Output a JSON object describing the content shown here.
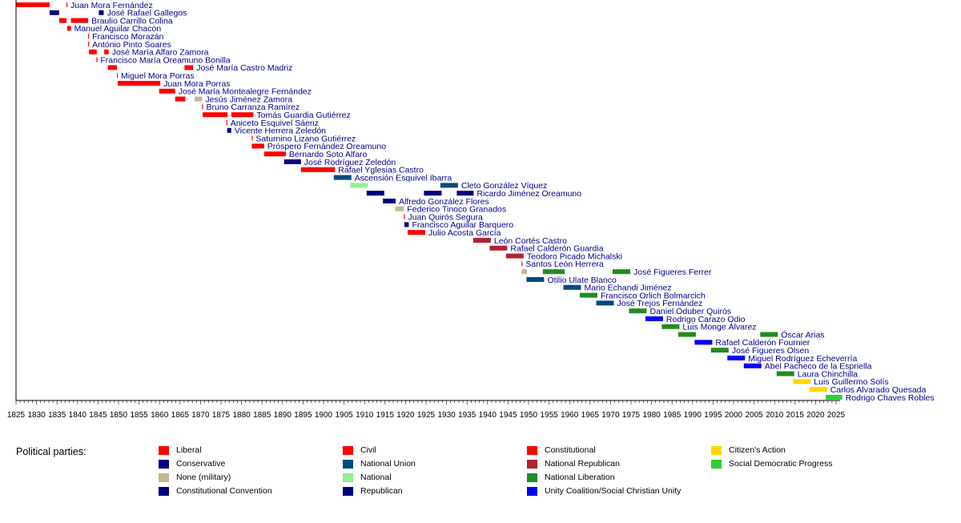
{
  "chart_data": {
    "type": "bar",
    "subtype": "timeline",
    "xlim": [
      1825,
      2026
    ],
    "xticks": [
      1825,
      1830,
      1835,
      1840,
      1845,
      1850,
      1855,
      1860,
      1865,
      1870,
      1875,
      1880,
      1885,
      1890,
      1895,
      1900,
      1905,
      1910,
      1915,
      1920,
      1925,
      1930,
      1935,
      1940,
      1945,
      1950,
      1955,
      1960,
      1965,
      1970,
      1975,
      1980,
      1985,
      1990,
      1995,
      2000,
      2005,
      2010,
      2015,
      2020,
      2025
    ],
    "parties": {
      "Liberal": "#ff0000",
      "Conservative": "#000080",
      "None (military)": "#c8b496",
      "Constitutional Convention": "#000080",
      "Civil": "#ff0000",
      "National Union": "#004a80",
      "National": "#90ee90",
      "Republican": "#000080",
      "Constitutional": "#ff0000",
      "National Republican": "#b22234",
      "National Liberation": "#228b22",
      "Unity Coalition/Social Christian Unity": "#0000ff",
      "Citizen's Action": "#ffd700",
      "Social Democratic Progress": "#32cd32"
    },
    "rows": [
      {
        "name": "Juan Mora Fernández",
        "terms": [
          {
            "start": 1824.8,
            "end": 1833.2,
            "party": "Liberal"
          },
          {
            "start": 1837.3,
            "end": 1837.5,
            "party": "Liberal"
          }
        ]
      },
      {
        "name": "José Rafael Gallegos",
        "terms": [
          {
            "start": 1833.2,
            "end": 1835.5,
            "party": "Conservative"
          },
          {
            "start": 1845.2,
            "end": 1846.4,
            "party": "Conservative"
          }
        ]
      },
      {
        "name": "Braulio Carrillo Colina",
        "terms": [
          {
            "start": 1835.5,
            "end": 1837.3,
            "party": "Liberal"
          },
          {
            "start": 1838.4,
            "end": 1842.6,
            "party": "Liberal"
          }
        ]
      },
      {
        "name": "Manuel Aguilar Chacón",
        "terms": [
          {
            "start": 1837.5,
            "end": 1838.4,
            "party": "Liberal"
          }
        ]
      },
      {
        "name": "Francisco Morazán",
        "terms": [
          {
            "start": 1842.6,
            "end": 1842.8,
            "party": "Liberal"
          }
        ]
      },
      {
        "name": "António Pinto Soares",
        "terms": [
          {
            "start": 1842.6,
            "end": 1842.8,
            "party": "Liberal"
          }
        ]
      },
      {
        "name": "José María Alfaro Zamora",
        "terms": [
          {
            "start": 1842.8,
            "end": 1844.7,
            "party": "Liberal"
          },
          {
            "start": 1846.5,
            "end": 1847.6,
            "party": "Liberal"
          }
        ]
      },
      {
        "name": "Francisco María Oreamuno Bonilla",
        "terms": [
          {
            "start": 1844.6,
            "end": 1844.8,
            "party": "Liberal"
          }
        ]
      },
      {
        "name": "José María Castro Madriz",
        "terms": [
          {
            "start": 1847.4,
            "end": 1849.6,
            "party": "Liberal"
          },
          {
            "start": 1866.1,
            "end": 1868.2,
            "party": "Liberal"
          }
        ]
      },
      {
        "name": "Miguel Mora Porras",
        "terms": [
          {
            "start": 1849.6,
            "end": 1849.8,
            "party": "Liberal"
          }
        ]
      },
      {
        "name": "Juan Mora Porras",
        "terms": [
          {
            "start": 1849.8,
            "end": 1860.2,
            "party": "Liberal"
          }
        ]
      },
      {
        "name": "José María Montealegre Fernández",
        "terms": [
          {
            "start": 1859.9,
            "end": 1863.8,
            "party": "Liberal"
          }
        ]
      },
      {
        "name": "Jesús Jiménez Zamora",
        "terms": [
          {
            "start": 1863.8,
            "end": 1866.3,
            "party": "Liberal"
          },
          {
            "start": 1868.6,
            "end": 1870.4,
            "party": "None (military)"
          }
        ]
      },
      {
        "name": "Bruno Carranza Ramírez",
        "terms": [
          {
            "start": 1870.4,
            "end": 1870.6,
            "party": "Liberal"
          }
        ]
      },
      {
        "name": "Tomás Guardia Gutiérrez",
        "terms": [
          {
            "start": 1870.5,
            "end": 1876.6,
            "party": "Liberal"
          },
          {
            "start": 1877.5,
            "end": 1882.9,
            "party": "Liberal"
          }
        ]
      },
      {
        "name": "Aniceto Esquivel Sáenz",
        "terms": [
          {
            "start": 1876.3,
            "end": 1876.5,
            "party": "Liberal"
          }
        ]
      },
      {
        "name": "Vicente Herrera Zeledón",
        "terms": [
          {
            "start": 1876.5,
            "end": 1877.5,
            "party": "Conservative"
          }
        ]
      },
      {
        "name": "Saturnino Lizano Gutiérrez",
        "terms": [
          {
            "start": 1882.5,
            "end": 1882.7,
            "party": "Liberal"
          }
        ]
      },
      {
        "name": "Próspero Fernández Oreamuno",
        "terms": [
          {
            "start": 1882.5,
            "end": 1885.5,
            "party": "Liberal"
          }
        ]
      },
      {
        "name": "Bernardo Soto Alfaro",
        "terms": [
          {
            "start": 1885.5,
            "end": 1890.8,
            "party": "Liberal"
          }
        ]
      },
      {
        "name": "José Rodríguez Zeledón",
        "terms": [
          {
            "start": 1890.4,
            "end": 1894.5,
            "party": "Constitutional Convention"
          }
        ]
      },
      {
        "name": "Rafael Yglesias Castro",
        "terms": [
          {
            "start": 1894.5,
            "end": 1902.8,
            "party": "Civil"
          }
        ]
      },
      {
        "name": "Ascensión Esquivel Ibarra",
        "terms": [
          {
            "start": 1902.5,
            "end": 1906.8,
            "party": "National Union"
          }
        ]
      },
      {
        "name": "Cleto González Víquez",
        "terms": [
          {
            "start": 1906.5,
            "end": 1910.8,
            "party": "National"
          },
          {
            "start": 1928.5,
            "end": 1932.8,
            "party": "National Union"
          }
        ]
      },
      {
        "name": "Ricardo Jiménez Oreamuno",
        "terms": [
          {
            "start": 1910.5,
            "end": 1914.8,
            "party": "Republican"
          },
          {
            "start": 1924.5,
            "end": 1928.8,
            "party": "Republican"
          },
          {
            "start": 1932.5,
            "end": 1936.6,
            "party": "Republican"
          }
        ]
      },
      {
        "name": "Alfredo González Flores",
        "terms": [
          {
            "start": 1914.5,
            "end": 1917.6,
            "party": "Republican"
          }
        ]
      },
      {
        "name": "Federico Tinoco Granados",
        "terms": [
          {
            "start": 1917.5,
            "end": 1919.6,
            "party": "None (military)"
          }
        ]
      },
      {
        "name": "Juan Quirós Segura",
        "terms": [
          {
            "start": 1919.6,
            "end": 1919.8,
            "party": "Liberal"
          }
        ]
      },
      {
        "name": "Francisco Aguilar Barquero",
        "terms": [
          {
            "start": 1919.7,
            "end": 1920.8,
            "party": "Conservative"
          }
        ]
      },
      {
        "name": "Julio Acosta García",
        "terms": [
          {
            "start": 1920.5,
            "end": 1924.8,
            "party": "Constitutional"
          }
        ]
      },
      {
        "name": "León Cortés Castro",
        "terms": [
          {
            "start": 1936.5,
            "end": 1940.8,
            "party": "National Republican"
          }
        ]
      },
      {
        "name": "Rafael Calderón Guardia",
        "terms": [
          {
            "start": 1940.5,
            "end": 1944.8,
            "party": "National Republican"
          }
        ]
      },
      {
        "name": "Teodoro Picado Michalski",
        "terms": [
          {
            "start": 1944.5,
            "end": 1948.8,
            "party": "National Republican"
          }
        ]
      },
      {
        "name": "Santos León Herrera",
        "terms": [
          {
            "start": 1948.3,
            "end": 1948.5,
            "party": "National Republican"
          }
        ]
      },
      {
        "name": "José Figueres Ferrer",
        "terms": [
          {
            "start": 1948.3,
            "end": 1949.6,
            "party": "None (military)"
          },
          {
            "start": 1953.5,
            "end": 1958.8,
            "party": "National Liberation"
          },
          {
            "start": 1970.5,
            "end": 1974.8,
            "party": "National Liberation"
          }
        ]
      },
      {
        "name": "Otilio Ulate Blanco",
        "terms": [
          {
            "start": 1949.5,
            "end": 1953.8,
            "party": "National Union"
          }
        ]
      },
      {
        "name": "Mario Echandi Jiménez",
        "terms": [
          {
            "start": 1958.5,
            "end": 1962.8,
            "party": "National Union"
          }
        ]
      },
      {
        "name": "Francisco Orlich Bolmarcich",
        "terms": [
          {
            "start": 1962.5,
            "end": 1966.8,
            "party": "National Liberation"
          }
        ]
      },
      {
        "name": "José Trejos Fernández",
        "terms": [
          {
            "start": 1966.5,
            "end": 1970.8,
            "party": "National Union"
          }
        ]
      },
      {
        "name": "Daniel Oduber Quirós",
        "terms": [
          {
            "start": 1974.5,
            "end": 1978.8,
            "party": "National Liberation"
          }
        ]
      },
      {
        "name": "Rodrigo Carazo Odio",
        "terms": [
          {
            "start": 1978.5,
            "end": 1982.8,
            "party": "Unity Coalition/Social Christian Unity"
          }
        ]
      },
      {
        "name": "Luis Monge Álvarez",
        "terms": [
          {
            "start": 1982.5,
            "end": 1986.8,
            "party": "National Liberation"
          }
        ]
      },
      {
        "name": "Óscar Arias",
        "terms": [
          {
            "start": 1986.5,
            "end": 1990.8,
            "party": "National Liberation"
          },
          {
            "start": 2006.5,
            "end": 2010.8,
            "party": "National Liberation"
          }
        ]
      },
      {
        "name": "Rafael Calderón Fournier",
        "terms": [
          {
            "start": 1990.5,
            "end": 1994.8,
            "party": "Unity Coalition/Social Christian Unity"
          }
        ]
      },
      {
        "name": "José Figueres Olsen",
        "terms": [
          {
            "start": 1994.5,
            "end": 1998.8,
            "party": "National Liberation"
          }
        ]
      },
      {
        "name": "Miguel Rodríguez Echeverría",
        "terms": [
          {
            "start": 1998.5,
            "end": 2002.8,
            "party": "Unity Coalition/Social Christian Unity"
          }
        ]
      },
      {
        "name": "Abel Pacheco de la Espriella",
        "terms": [
          {
            "start": 2002.5,
            "end": 2006.8,
            "party": "Unity Coalition/Social Christian Unity"
          }
        ]
      },
      {
        "name": "Laura Chinchilla",
        "terms": [
          {
            "start": 2010.5,
            "end": 2014.8,
            "party": "National Liberation"
          }
        ]
      },
      {
        "name": "Luis Guillermo Solís",
        "terms": [
          {
            "start": 2014.5,
            "end": 2018.8,
            "party": "Citizen's Action"
          }
        ]
      },
      {
        "name": "Carlos Alvarado Quesada",
        "terms": [
          {
            "start": 2018.5,
            "end": 2022.8,
            "party": "Citizen's Action"
          }
        ]
      },
      {
        "name": "Rodrigo Chaves Robles",
        "terms": [
          {
            "start": 2022.5,
            "end": 2026.5,
            "party": "Social Democratic Progress"
          }
        ]
      }
    ]
  },
  "legend": {
    "title": "Political parties:",
    "items": [
      {
        "label": "Liberal",
        "color": "#ff0000"
      },
      {
        "label": "Conservative",
        "color": "#000080"
      },
      {
        "label": "None (military)",
        "color": "#c8b496"
      },
      {
        "label": "Constitutional Convention",
        "color": "#000080"
      },
      {
        "label": "Civil",
        "color": "#ff0000"
      },
      {
        "label": "National Union",
        "color": "#004a80"
      },
      {
        "label": "National",
        "color": "#90ee90"
      },
      {
        "label": "Republican",
        "color": "#000080"
      },
      {
        "label": "Constitutional",
        "color": "#ff0000"
      },
      {
        "label": "National Republican",
        "color": "#b22234"
      },
      {
        "label": "National Liberation",
        "color": "#228b22"
      },
      {
        "label": "Unity Coalition/Social Christian Unity",
        "color": "#0000ff"
      },
      {
        "label": "Citizen's Action",
        "color": "#ffd700"
      },
      {
        "label": "Social Democratic Progress",
        "color": "#32cd32"
      }
    ]
  }
}
